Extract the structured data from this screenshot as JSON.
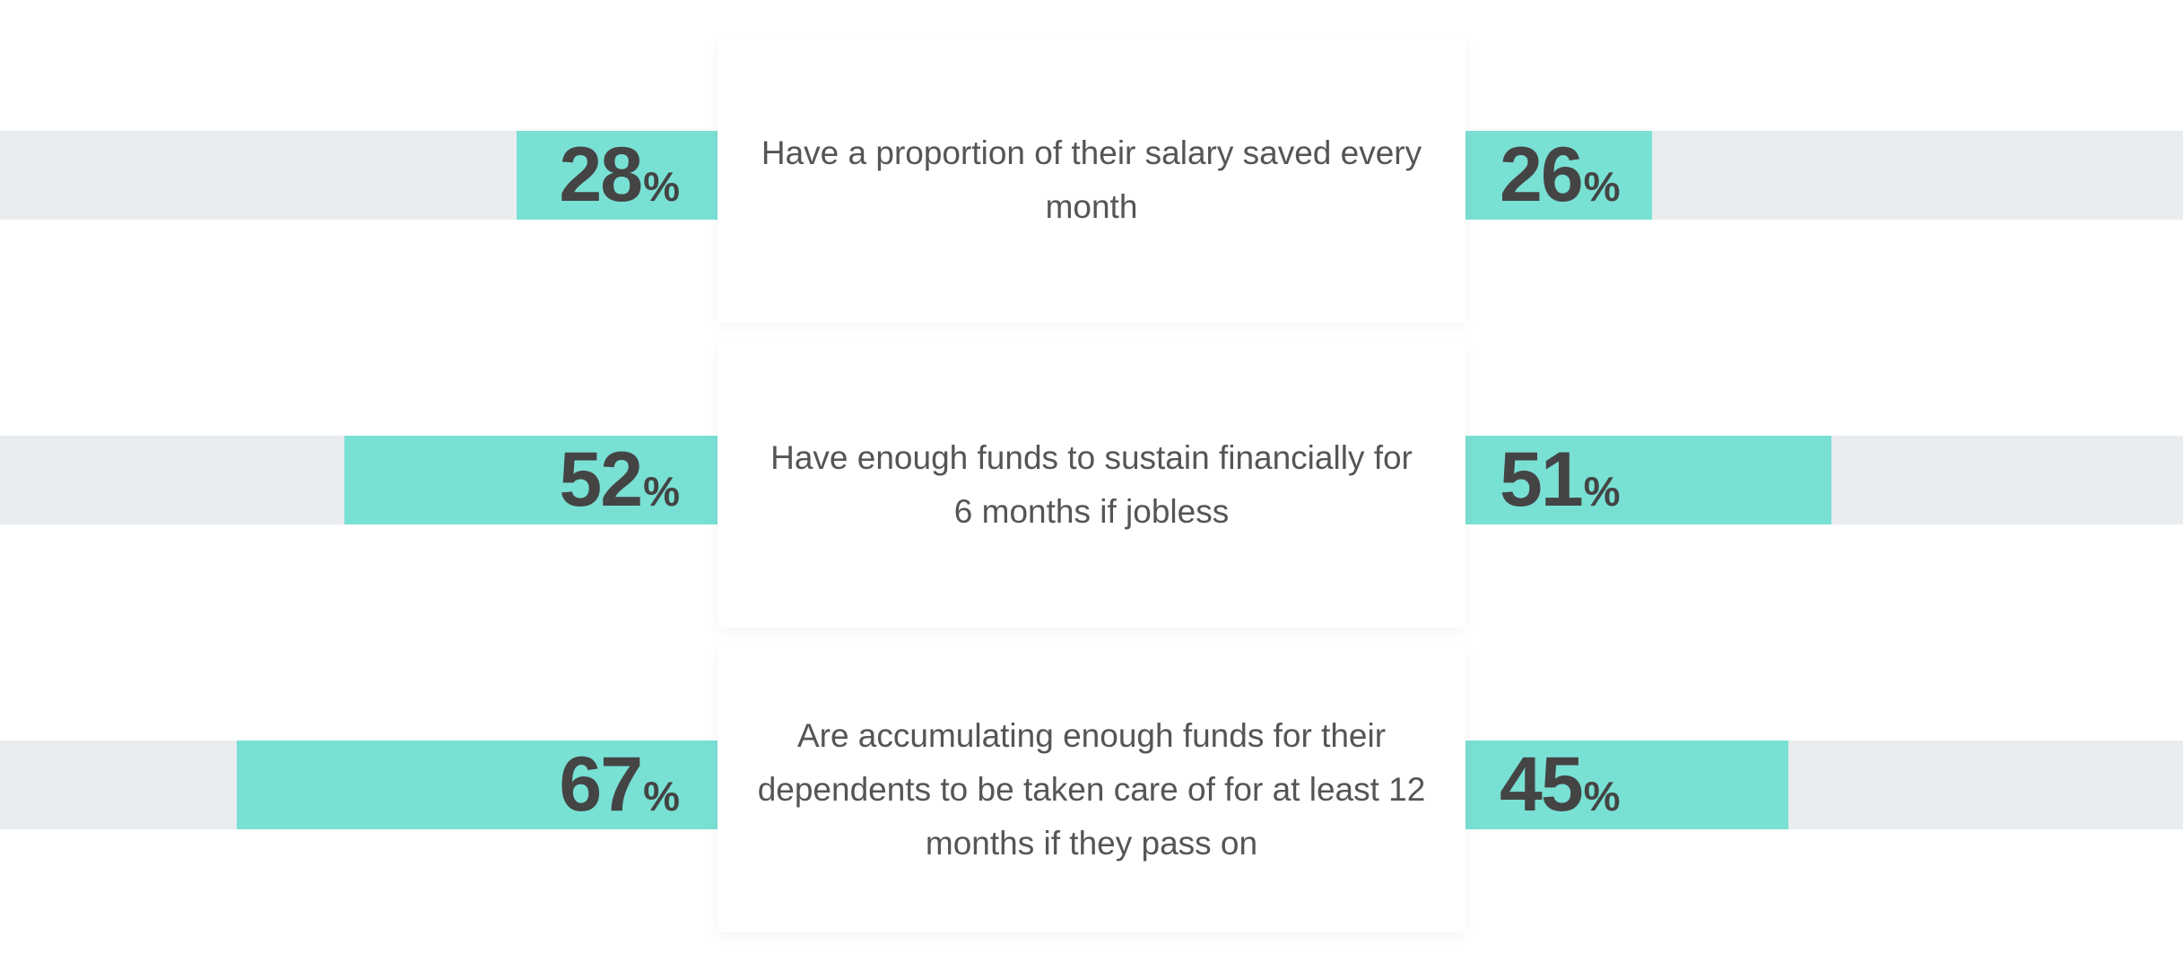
{
  "chart_data": {
    "type": "butterfly",
    "categories": [
      "Have a proportion of their salary saved every month",
      "Have enough funds to sustain financially for 6 months if jobless",
      "Are accumulating enough funds for their dependents to be taken care of for at least 12 months if they pass on"
    ],
    "unit": "%",
    "xlim": [
      0,
      100
    ],
    "track_color": "#e9edf0",
    "series": [
      {
        "side": "left",
        "color": "#79e0d4",
        "values": [
          28,
          52,
          67
        ]
      },
      {
        "side": "right",
        "color": "#79e0d4",
        "values": [
          26,
          51,
          45
        ]
      }
    ]
  }
}
